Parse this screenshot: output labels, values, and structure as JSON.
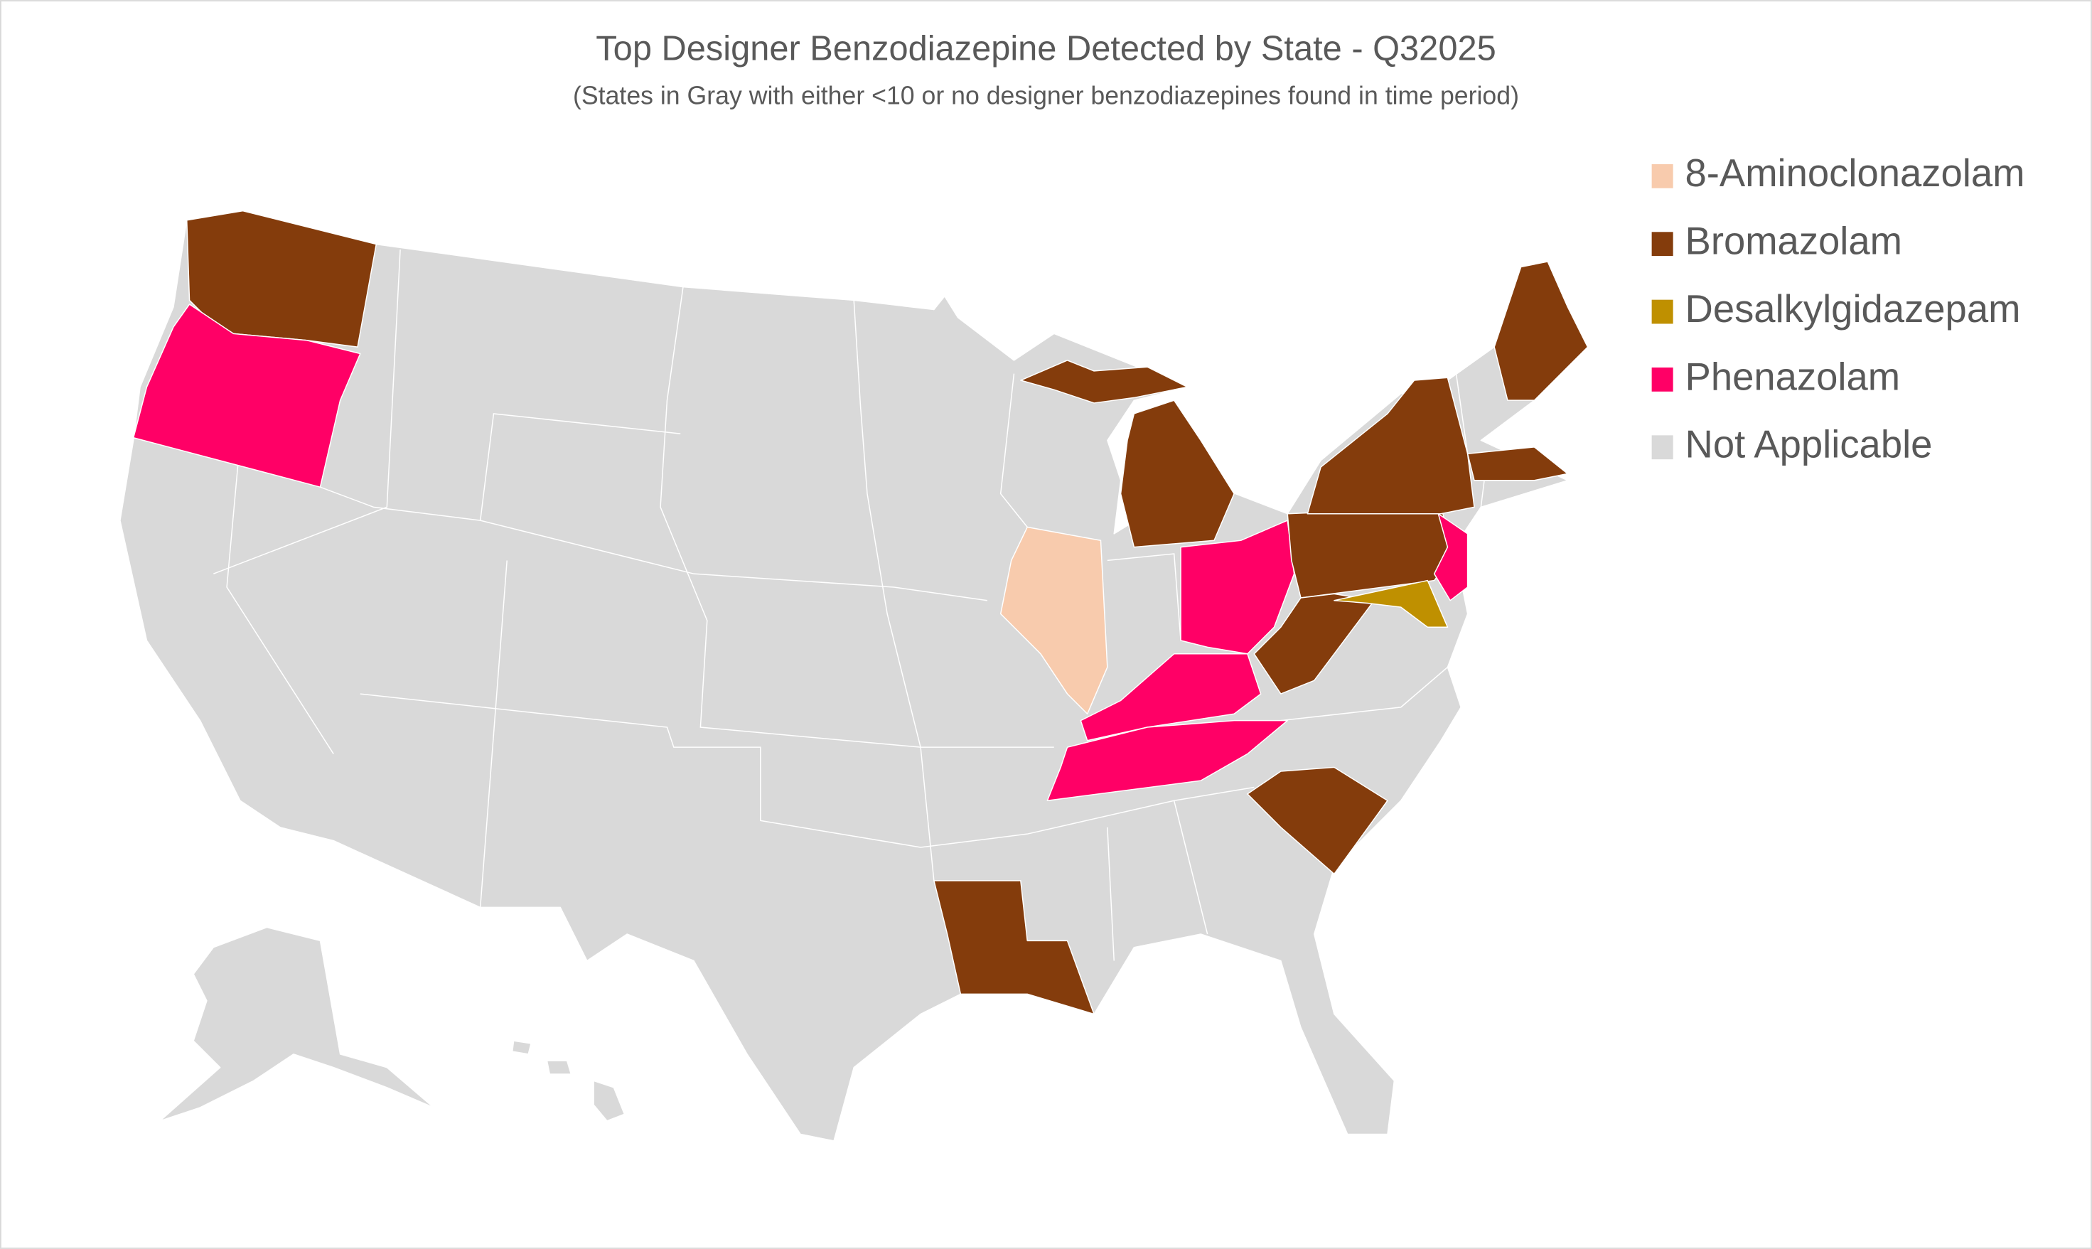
{
  "title": "Top Designer Benzodiazepine Detected by State - Q32025",
  "subtitle": "(States in Gray with either <10 or no designer benzodiazepines found in time period)",
  "legend": [
    {
      "name": "8-Aminoclonazolam",
      "color": "#f8cbad"
    },
    {
      "name": "Bromazolam",
      "color": "#843c0c"
    },
    {
      "name": "Desalkylgidazepam",
      "color": "#bf9000"
    },
    {
      "name": "Phenazolam",
      "color": "#ff0066"
    },
    {
      "name": "Not Applicable",
      "color": "#d9d9d9"
    }
  ]
}
